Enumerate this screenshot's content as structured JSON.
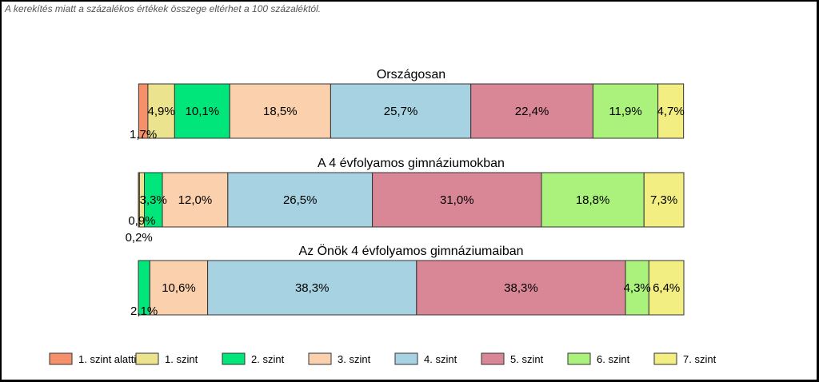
{
  "note": "A kerekítés miatt a  százalékos értékek összege eltérhet a 100 százaléktól.",
  "levels": [
    {
      "name": "1. szint alatti",
      "color": "#f4906a"
    },
    {
      "name": "1. szint",
      "color": "#ece38e"
    },
    {
      "name": "2. szint",
      "color": "#00e67a"
    },
    {
      "name": "3. szint",
      "color": "#fbd0ad"
    },
    {
      "name": "4. szint",
      "color": "#a7d2e2"
    },
    {
      "name": "5. szint",
      "color": "#d98797"
    },
    {
      "name": "6. szint",
      "color": "#aaf27c"
    },
    {
      "name": "7. szint",
      "color": "#f2ee82"
    }
  ],
  "chart_data": {
    "type": "bar",
    "orientation": "horizontal-stacked",
    "legend": "bottom",
    "bars": [
      {
        "title": "Országosan",
        "values": [
          1.7,
          4.9,
          10.1,
          18.5,
          25.7,
          22.4,
          11.9,
          4.7
        ],
        "labels": [
          "1,7%",
          "4,9%",
          "10,1%",
          "18,5%",
          "25,7%",
          "22,4%",
          "11,9%",
          "4,7%"
        ]
      },
      {
        "title": "A 4 évfolyamos gimnáziumokban",
        "values": [
          0.2,
          0.9,
          3.3,
          12.0,
          26.5,
          31.0,
          18.8,
          7.3
        ],
        "labels": [
          "0,2%",
          "0,9%",
          "3,3%",
          "12,0%",
          "26,5%",
          "31,0%",
          "18,8%",
          "7,3%"
        ]
      },
      {
        "title": "Az Önök 4 évfolyamos gimnáziumaiban",
        "values": [
          0,
          0,
          2.1,
          10.6,
          38.3,
          38.3,
          4.3,
          6.4
        ],
        "labels": [
          "",
          "",
          "2,1%",
          "10,6%",
          "38,3%",
          "38,3%",
          "4,3%",
          "6,4%"
        ]
      }
    ]
  }
}
